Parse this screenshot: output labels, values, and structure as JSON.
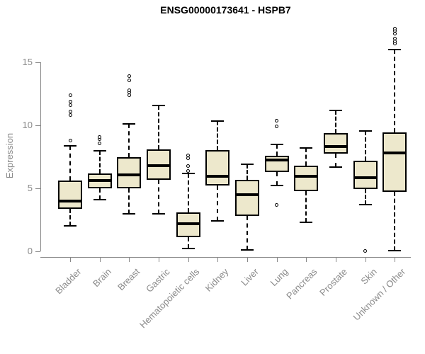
{
  "title": "ENSG00000173641 - HSPB7",
  "chart_data": {
    "type": "boxplot",
    "title": "ENSG00000173641 - HSPB7",
    "xlabel": "",
    "ylabel": "Expression",
    "ylim": [
      0,
      18
    ],
    "yticks": [
      0,
      5,
      10,
      15
    ],
    "grid": false,
    "legend": "none",
    "categories": [
      "Bladder",
      "Brain",
      "Breast",
      "Gastric",
      "Hematopoietic cells",
      "Kidney",
      "Liver",
      "Lung",
      "Pancreas",
      "Prostate",
      "Skin",
      "Unknown / Other"
    ],
    "series": [
      {
        "name": "Bladder",
        "whisker_low": 2.0,
        "q1": 3.4,
        "median": 4.0,
        "q3": 5.6,
        "whisker_high": 8.4,
        "outliers": [
          8.8,
          10.8,
          11.1,
          11.6,
          11.9,
          12.4
        ]
      },
      {
        "name": "Brain",
        "whisker_low": 4.1,
        "q1": 5.0,
        "median": 5.6,
        "q3": 6.2,
        "whisker_high": 8.0,
        "outliers": [
          8.6,
          8.9,
          9.1
        ]
      },
      {
        "name": "Breast",
        "whisker_low": 3.0,
        "q1": 5.0,
        "median": 6.1,
        "q3": 7.5,
        "whisker_high": 10.1,
        "outliers": [
          12.4,
          12.6,
          12.8,
          13.6,
          13.9
        ]
      },
      {
        "name": "Gastric",
        "whisker_low": 3.0,
        "q1": 5.7,
        "median": 6.8,
        "q3": 8.1,
        "whisker_high": 11.6,
        "outliers": []
      },
      {
        "name": "Hematopoietic cells",
        "whisker_low": 0.2,
        "q1": 1.1,
        "median": 2.2,
        "q3": 3.1,
        "whisker_high": 6.2,
        "outliers": [
          6.4,
          6.8,
          7.4,
          7.6
        ]
      },
      {
        "name": "Kidney",
        "whisker_low": 2.4,
        "q1": 5.25,
        "median": 5.95,
        "q3": 8.05,
        "whisker_high": 10.35,
        "outliers": []
      },
      {
        "name": "Liver",
        "whisker_low": 0.1,
        "q1": 2.8,
        "median": 4.5,
        "q3": 5.7,
        "whisker_high": 6.9,
        "outliers": []
      },
      {
        "name": "Lung",
        "whisker_low": 5.25,
        "q1": 6.3,
        "median": 7.25,
        "q3": 7.6,
        "whisker_high": 8.5,
        "outliers": [
          3.7,
          9.9,
          10.4
        ]
      },
      {
        "name": "Pancreas",
        "whisker_low": 2.3,
        "q1": 4.8,
        "median": 5.95,
        "q3": 6.8,
        "whisker_high": 8.2,
        "outliers": []
      },
      {
        "name": "Prostate",
        "whisker_low": 6.7,
        "q1": 7.75,
        "median": 8.3,
        "q3": 9.4,
        "whisker_high": 11.2,
        "outliers": []
      },
      {
        "name": "Skin",
        "whisker_low": 3.7,
        "q1": 4.95,
        "median": 5.85,
        "q3": 7.2,
        "whisker_high": 9.55,
        "outliers": [
          0.05
        ]
      },
      {
        "name": "Unknown / Other",
        "whisker_low": 0.05,
        "q1": 4.7,
        "median": 7.8,
        "q3": 9.45,
        "whisker_high": 16.05,
        "outliers": [
          16.5,
          16.7,
          16.9,
          17.3,
          17.5,
          17.7
        ]
      }
    ],
    "colors": {
      "box_fill": "#EDE8CC",
      "box_border": "#000000",
      "axis": "#888888",
      "label_text": "#8a8a8a",
      "title_text": "#000000"
    }
  }
}
